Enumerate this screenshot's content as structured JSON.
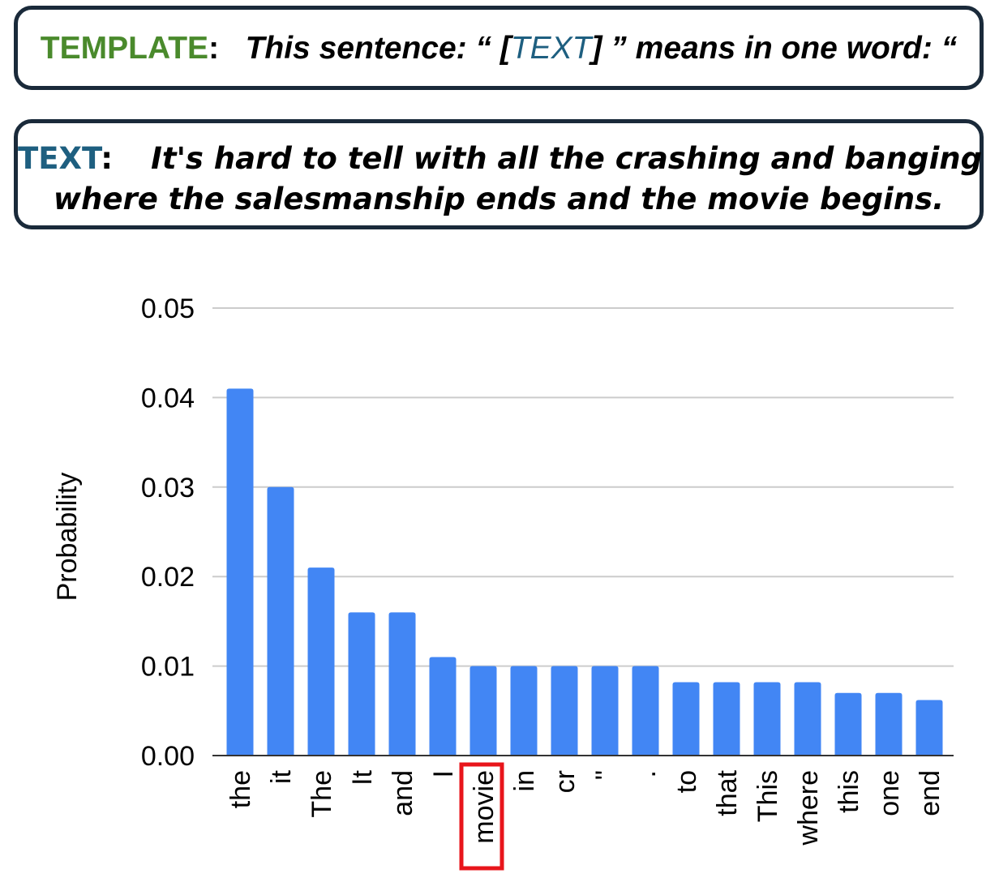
{
  "template": {
    "label": "TEMPLATE",
    "colon": ":",
    "text_before": "This sentence: “ [",
    "text_placeholder": "TEXT",
    "text_after": "] ” means in one word: “"
  },
  "text": {
    "label": "TEXT",
    "colon": ":",
    "line1": "It's hard to tell with all the crashing and banging",
    "line2": "where the salesmanship ends and the movie begins."
  },
  "colors": {
    "bar": "#4286f4",
    "highlight_box": "#e8151b",
    "grid": "#cccccc",
    "template_label": "#4a8a2c",
    "text_label": "#1e5f80"
  },
  "chart_data": {
    "type": "bar",
    "title": "",
    "xlabel": "",
    "ylabel": "Probability",
    "ylim": [
      0,
      0.05
    ],
    "yticks": [
      "0.00",
      "0.01",
      "0.02",
      "0.03",
      "0.04",
      "0.05"
    ],
    "grid": true,
    "highlighted_category": "movie",
    "categories": [
      "the",
      "it",
      "The",
      "It",
      "and",
      "I",
      "movie",
      "in",
      "cr",
      "\"",
      ".",
      "to",
      "that",
      "This",
      "where",
      "this",
      "one",
      "end"
    ],
    "values": [
      0.041,
      0.03,
      0.021,
      0.016,
      0.016,
      0.011,
      0.01,
      0.01,
      0.01,
      0.01,
      0.01,
      0.0082,
      0.0082,
      0.0082,
      0.0082,
      0.007,
      0.007,
      0.0062
    ]
  }
}
